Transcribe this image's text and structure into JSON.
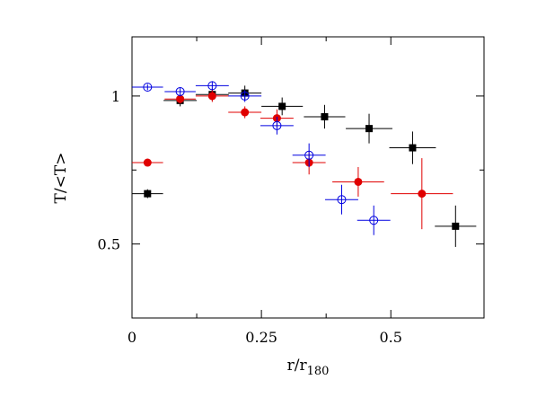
{
  "chart_data": {
    "type": "scatter",
    "xlabel": "r/r",
    "xlabel_subscript": "180",
    "ylabel": "T/<T>",
    "xlim": [
      0,
      0.68
    ],
    "ylim": [
      0.25,
      1.2
    ],
    "x_ticks": [
      0,
      0.25,
      0.5
    ],
    "x_tick_labels": [
      "0",
      "0.25",
      "0.5"
    ],
    "y_ticks": [
      0.5,
      1
    ],
    "y_tick_labels": [
      "0.5",
      "1"
    ],
    "minor_x_ticks": [
      0.125,
      0.375
    ],
    "minor_y_ticks": [
      0.75
    ],
    "grid": false,
    "series": [
      {
        "marker": "square",
        "color": "#000000",
        "points": [
          {
            "x": 0.03,
            "y": 0.67,
            "xerr": 0.03,
            "yerr": 0.015
          },
          {
            "x": 0.093,
            "y": 0.985,
            "xerr": 0.032,
            "yerr": 0.02
          },
          {
            "x": 0.155,
            "y": 1.005,
            "xerr": 0.032,
            "yerr": 0.02
          },
          {
            "x": 0.218,
            "y": 1.01,
            "xerr": 0.032,
            "yerr": 0.025
          },
          {
            "x": 0.29,
            "y": 0.965,
            "xerr": 0.04,
            "yerr": 0.03
          },
          {
            "x": 0.372,
            "y": 0.93,
            "xerr": 0.04,
            "yerr": 0.04
          },
          {
            "x": 0.458,
            "y": 0.89,
            "xerr": 0.045,
            "yerr": 0.05
          },
          {
            "x": 0.542,
            "y": 0.825,
            "xerr": 0.045,
            "yerr": 0.055
          },
          {
            "x": 0.625,
            "y": 0.56,
            "xerr": 0.04,
            "yerr": 0.07
          }
        ]
      },
      {
        "marker": "filled-circle",
        "color": "#e00000",
        "points": [
          {
            "x": 0.03,
            "y": 0.775,
            "xerr": 0.03,
            "yerr": 0.01
          },
          {
            "x": 0.093,
            "y": 0.99,
            "xerr": 0.03,
            "yerr": 0.015
          },
          {
            "x": 0.155,
            "y": 1.0,
            "xerr": 0.032,
            "yerr": 0.02
          },
          {
            "x": 0.218,
            "y": 0.945,
            "xerr": 0.032,
            "yerr": 0.02
          },
          {
            "x": 0.28,
            "y": 0.925,
            "xerr": 0.032,
            "yerr": 0.03
          },
          {
            "x": 0.342,
            "y": 0.775,
            "xerr": 0.032,
            "yerr": 0.04
          },
          {
            "x": 0.437,
            "y": 0.71,
            "xerr": 0.05,
            "yerr": 0.05
          },
          {
            "x": 0.56,
            "y": 0.67,
            "xerr": 0.06,
            "yerr": 0.12
          }
        ]
      },
      {
        "marker": "open-circle",
        "color": "#0000e0",
        "points": [
          {
            "x": 0.03,
            "y": 1.03,
            "xerr": 0.03,
            "yerr": 0.01
          },
          {
            "x": 0.093,
            "y": 1.015,
            "xerr": 0.03,
            "yerr": 0.015
          },
          {
            "x": 0.155,
            "y": 1.035,
            "xerr": 0.032,
            "yerr": 0.015
          },
          {
            "x": 0.218,
            "y": 1.0,
            "xerr": 0.032,
            "yerr": 0.02
          },
          {
            "x": 0.28,
            "y": 0.9,
            "xerr": 0.032,
            "yerr": 0.03
          },
          {
            "x": 0.342,
            "y": 0.8,
            "xerr": 0.032,
            "yerr": 0.04
          },
          {
            "x": 0.405,
            "y": 0.65,
            "xerr": 0.032,
            "yerr": 0.05
          },
          {
            "x": 0.467,
            "y": 0.58,
            "xerr": 0.032,
            "yerr": 0.05
          }
        ]
      }
    ]
  }
}
